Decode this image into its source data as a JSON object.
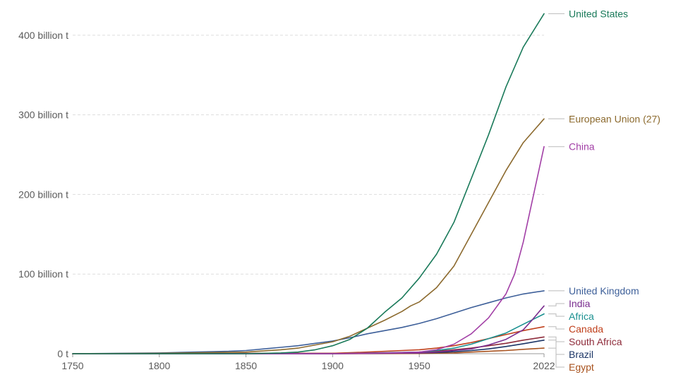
{
  "chart_data": {
    "type": "line",
    "title": "",
    "xlabel": "",
    "ylabel": "",
    "xlim": [
      1750,
      2022
    ],
    "ylim": [
      0,
      430
    ],
    "y_unit": "billion t",
    "grid": "horizontal dashed",
    "legend": "labels at line ends (right)",
    "x_ticks": [
      {
        "value": 1750,
        "label": "1750"
      },
      {
        "value": 1800,
        "label": "1800"
      },
      {
        "value": 1850,
        "label": "1850"
      },
      {
        "value": 1900,
        "label": "1900"
      },
      {
        "value": 1950,
        "label": "1950"
      },
      {
        "value": 2022,
        "label": "2022"
      }
    ],
    "y_ticks": [
      {
        "value": 0,
        "label": "0 t"
      },
      {
        "value": 100,
        "label": "100 billion t"
      },
      {
        "value": 200,
        "label": "200 billion t"
      },
      {
        "value": 300,
        "label": "300 billion t"
      },
      {
        "value": 400,
        "label": "400 billion t"
      }
    ],
    "series": [
      {
        "name": "United States",
        "color": "#1a7a5a",
        "label_value": 427,
        "points": [
          [
            1750,
            0
          ],
          [
            1800,
            0
          ],
          [
            1850,
            0
          ],
          [
            1870,
            1
          ],
          [
            1880,
            2
          ],
          [
            1890,
            5
          ],
          [
            1900,
            10
          ],
          [
            1910,
            18
          ],
          [
            1920,
            32
          ],
          [
            1930,
            52
          ],
          [
            1940,
            70
          ],
          [
            1950,
            95
          ],
          [
            1960,
            125
          ],
          [
            1970,
            165
          ],
          [
            1980,
            220
          ],
          [
            1990,
            275
          ],
          [
            2000,
            335
          ],
          [
            2010,
            385
          ],
          [
            2022,
            427
          ]
        ]
      },
      {
        "name": "European Union (27)",
        "color": "#8c6a2e",
        "label_value": 295,
        "points": [
          [
            1750,
            0
          ],
          [
            1800,
            0.5
          ],
          [
            1850,
            2
          ],
          [
            1870,
            5
          ],
          [
            1880,
            7
          ],
          [
            1890,
            11
          ],
          [
            1900,
            15
          ],
          [
            1910,
            22
          ],
          [
            1920,
            32
          ],
          [
            1930,
            42
          ],
          [
            1940,
            53
          ],
          [
            1945,
            60
          ],
          [
            1950,
            65
          ],
          [
            1960,
            83
          ],
          [
            1970,
            110
          ],
          [
            1980,
            150
          ],
          [
            1990,
            190
          ],
          [
            2000,
            230
          ],
          [
            2010,
            265
          ],
          [
            2022,
            295
          ]
        ]
      },
      {
        "name": "China",
        "color": "#a23fa6",
        "label_value": 260,
        "points": [
          [
            1750,
            0
          ],
          [
            1900,
            0
          ],
          [
            1930,
            1
          ],
          [
            1950,
            2
          ],
          [
            1960,
            5
          ],
          [
            1970,
            12
          ],
          [
            1980,
            25
          ],
          [
            1990,
            45
          ],
          [
            2000,
            75
          ],
          [
            2005,
            100
          ],
          [
            2010,
            140
          ],
          [
            2015,
            190
          ],
          [
            2022,
            260
          ]
        ]
      },
      {
        "name": "United Kingdom",
        "color": "#3d5f99",
        "label_value": 79,
        "points": [
          [
            1750,
            0
          ],
          [
            1800,
            1
          ],
          [
            1820,
            2
          ],
          [
            1840,
            3
          ],
          [
            1850,
            4
          ],
          [
            1870,
            8
          ],
          [
            1880,
            10
          ],
          [
            1890,
            13
          ],
          [
            1900,
            16
          ],
          [
            1910,
            20
          ],
          [
            1920,
            25
          ],
          [
            1930,
            29
          ],
          [
            1940,
            33
          ],
          [
            1950,
            38
          ],
          [
            1960,
            44
          ],
          [
            1970,
            51
          ],
          [
            1980,
            58
          ],
          [
            1990,
            64
          ],
          [
            2000,
            70
          ],
          [
            2010,
            75
          ],
          [
            2022,
            79
          ]
        ]
      },
      {
        "name": "India",
        "color": "#7a2e8f",
        "label_value": 60,
        "points": [
          [
            1750,
            0
          ],
          [
            1900,
            0
          ],
          [
            1950,
            1
          ],
          [
            1960,
            2
          ],
          [
            1970,
            4
          ],
          [
            1980,
            6
          ],
          [
            1990,
            11
          ],
          [
            2000,
            18
          ],
          [
            2010,
            30
          ],
          [
            2015,
            42
          ],
          [
            2022,
            60
          ]
        ]
      },
      {
        "name": "Africa",
        "color": "#1a9090",
        "label_value": 50,
        "points": [
          [
            1750,
            0
          ],
          [
            1900,
            0
          ],
          [
            1950,
            2
          ],
          [
            1960,
            4
          ],
          [
            1970,
            7
          ],
          [
            1980,
            12
          ],
          [
            1990,
            19
          ],
          [
            2000,
            26
          ],
          [
            2010,
            37
          ],
          [
            2022,
            50
          ]
        ]
      },
      {
        "name": "Canada",
        "color": "#c0401c",
        "label_value": 34,
        "points": [
          [
            1750,
            0
          ],
          [
            1900,
            0.5
          ],
          [
            1920,
            2
          ],
          [
            1940,
            4
          ],
          [
            1950,
            5
          ],
          [
            1960,
            7
          ],
          [
            1970,
            10
          ],
          [
            1980,
            14
          ],
          [
            1990,
            19
          ],
          [
            2000,
            24
          ],
          [
            2010,
            29
          ],
          [
            2022,
            34
          ]
        ]
      },
      {
        "name": "South Africa",
        "color": "#8e2b3a",
        "label_value": 21,
        "points": [
          [
            1750,
            0
          ],
          [
            1900,
            0.5
          ],
          [
            1930,
            1
          ],
          [
            1950,
            2
          ],
          [
            1960,
            3
          ],
          [
            1970,
            5
          ],
          [
            1980,
            7
          ],
          [
            1990,
            10
          ],
          [
            2000,
            13
          ],
          [
            2010,
            17
          ],
          [
            2022,
            21
          ]
        ]
      },
      {
        "name": "Brazil",
        "color": "#1b3566",
        "label_value": 17,
        "points": [
          [
            1750,
            0
          ],
          [
            1900,
            0
          ],
          [
            1950,
            1
          ],
          [
            1960,
            1.5
          ],
          [
            1970,
            2.5
          ],
          [
            1980,
            4
          ],
          [
            1990,
            6
          ],
          [
            2000,
            9
          ],
          [
            2010,
            12.5
          ],
          [
            2022,
            17
          ]
        ]
      },
      {
        "name": "Egypt",
        "color": "#a8521e",
        "label_value": 7,
        "points": [
          [
            1750,
            0
          ],
          [
            1900,
            0
          ],
          [
            1950,
            0.3
          ],
          [
            1960,
            0.7
          ],
          [
            1970,
            1
          ],
          [
            1980,
            2
          ],
          [
            1990,
            3
          ],
          [
            2000,
            4
          ],
          [
            2010,
            5.5
          ],
          [
            2022,
            7
          ]
        ]
      }
    ]
  }
}
